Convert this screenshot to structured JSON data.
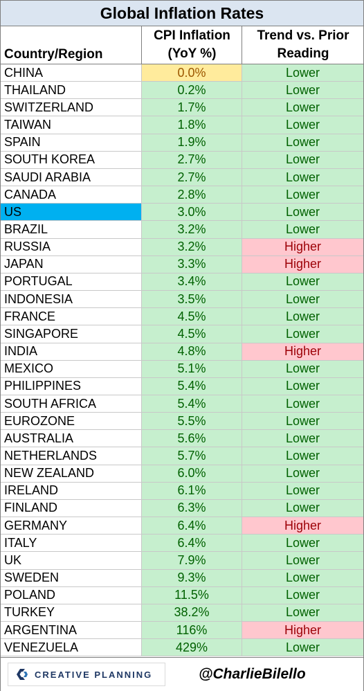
{
  "title": "Global Inflation Rates",
  "headers": {
    "country": "Country/Region",
    "cpi_line1": "CPI Inflation",
    "cpi_line2": "(YoY %)",
    "trend_line1": "Trend vs. Prior",
    "trend_line2": "Reading"
  },
  "colors": {
    "lower_bg": "#c6efce",
    "higher_bg": "#ffc7ce",
    "lowest_value_bg": "#ffeb9c",
    "us_highlight": "#00b0f0",
    "title_bg": "#dbe5f1"
  },
  "chart_data": {
    "type": "table",
    "title": "Global Inflation Rates",
    "columns": [
      "Country/Region",
      "CPI Inflation (YoY %)",
      "Trend vs. Prior Reading"
    ],
    "rows": [
      {
        "country": "CHINA",
        "cpi": "0.0%",
        "trend": "Lower"
      },
      {
        "country": "THAILAND",
        "cpi": "0.2%",
        "trend": "Lower"
      },
      {
        "country": "SWITZERLAND",
        "cpi": "1.7%",
        "trend": "Lower"
      },
      {
        "country": "TAIWAN",
        "cpi": "1.8%",
        "trend": "Lower"
      },
      {
        "country": "SPAIN",
        "cpi": "1.9%",
        "trend": "Lower"
      },
      {
        "country": "SOUTH KOREA",
        "cpi": "2.7%",
        "trend": "Lower"
      },
      {
        "country": "SAUDI ARABIA",
        "cpi": "2.7%",
        "trend": "Lower"
      },
      {
        "country": "CANADA",
        "cpi": "2.8%",
        "trend": "Lower"
      },
      {
        "country": "US",
        "cpi": "3.0%",
        "trend": "Lower"
      },
      {
        "country": "BRAZIL",
        "cpi": "3.2%",
        "trend": "Lower"
      },
      {
        "country": "RUSSIA",
        "cpi": "3.2%",
        "trend": "Higher"
      },
      {
        "country": "JAPAN",
        "cpi": "3.3%",
        "trend": "Higher"
      },
      {
        "country": "PORTUGAL",
        "cpi": "3.4%",
        "trend": "Lower"
      },
      {
        "country": "INDONESIA",
        "cpi": "3.5%",
        "trend": "Lower"
      },
      {
        "country": "FRANCE",
        "cpi": "4.5%",
        "trend": "Lower"
      },
      {
        "country": "SINGAPORE",
        "cpi": "4.5%",
        "trend": "Lower"
      },
      {
        "country": "INDIA",
        "cpi": "4.8%",
        "trend": "Higher"
      },
      {
        "country": "MEXICO",
        "cpi": "5.1%",
        "trend": "Lower"
      },
      {
        "country": "PHILIPPINES",
        "cpi": "5.4%",
        "trend": "Lower"
      },
      {
        "country": "SOUTH AFRICA",
        "cpi": "5.4%",
        "trend": "Lower"
      },
      {
        "country": "EUROZONE",
        "cpi": "5.5%",
        "trend": "Lower"
      },
      {
        "country": "AUSTRALIA",
        "cpi": "5.6%",
        "trend": "Lower"
      },
      {
        "country": "NETHERLANDS",
        "cpi": "5.7%",
        "trend": "Lower"
      },
      {
        "country": "NEW ZEALAND",
        "cpi": "6.0%",
        "trend": "Lower"
      },
      {
        "country": "IRELAND",
        "cpi": "6.1%",
        "trend": "Lower"
      },
      {
        "country": "FINLAND",
        "cpi": "6.3%",
        "trend": "Lower"
      },
      {
        "country": "GERMANY",
        "cpi": "6.4%",
        "trend": "Higher"
      },
      {
        "country": "ITALY",
        "cpi": "6.4%",
        "trend": "Lower"
      },
      {
        "country": "UK",
        "cpi": "7.9%",
        "trend": "Lower"
      },
      {
        "country": "SWEDEN",
        "cpi": "9.3%",
        "trend": "Lower"
      },
      {
        "country": "POLAND",
        "cpi": "11.5%",
        "trend": "Lower"
      },
      {
        "country": "TURKEY",
        "cpi": "38.2%",
        "trend": "Lower"
      },
      {
        "country": "ARGENTINA",
        "cpi": "116%",
        "trend": "Higher"
      },
      {
        "country": "VENEZUELA",
        "cpi": "429%",
        "trend": "Lower"
      }
    ]
  },
  "footer": {
    "logo_text": "CREATIVE PLANNING",
    "logo_icon": "creative-planning-logo-icon",
    "handle": "@CharlieBilello"
  }
}
